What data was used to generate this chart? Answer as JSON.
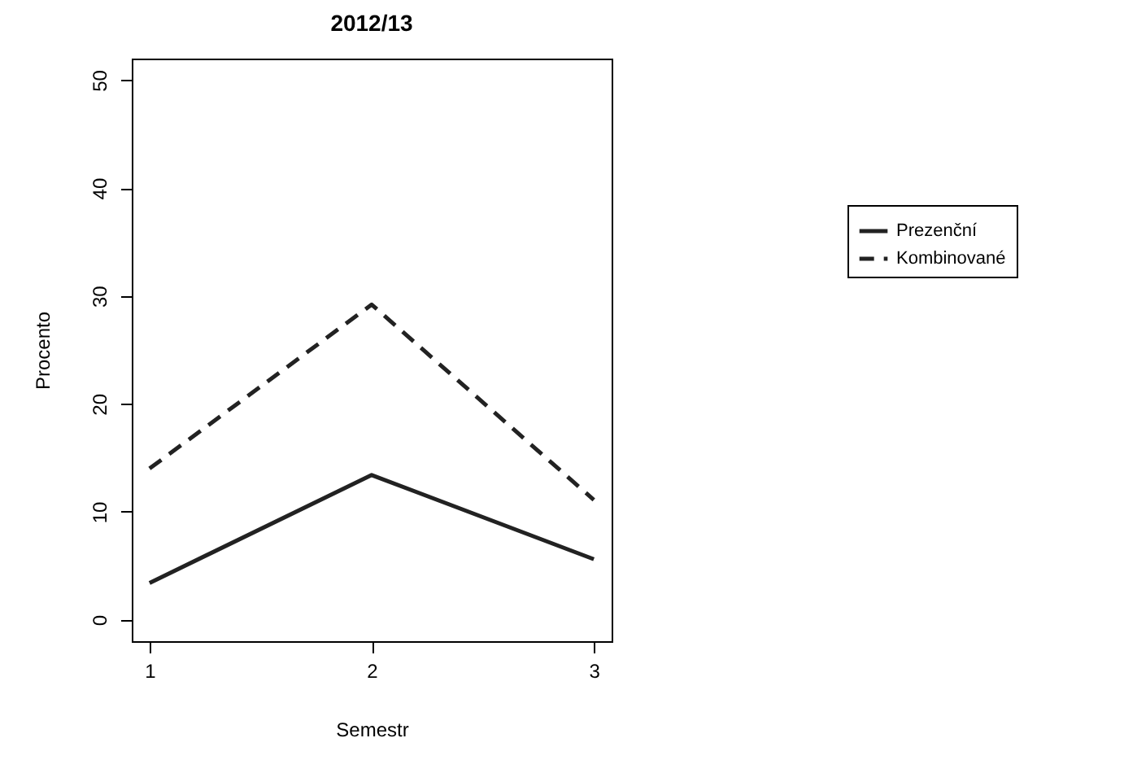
{
  "chart_data": {
    "type": "line",
    "title": "2012/13",
    "xlabel": "Semestr",
    "ylabel": "Procento",
    "x": [
      1,
      2,
      3
    ],
    "xlim": [
      0.92,
      3.08
    ],
    "xticks": [
      1,
      2,
      3
    ],
    "ylim": [
      -2,
      52
    ],
    "yticks": [
      0,
      10,
      20,
      30,
      40,
      50
    ],
    "series": [
      {
        "name": "Prezenční",
        "color": "#222222",
        "line_style": "solid",
        "values": [
          3.4,
          13.4,
          5.6
        ]
      },
      {
        "name": "Kombinované",
        "color": "#222222",
        "line_style": "dashed",
        "values": [
          14,
          29.2,
          11.1
        ]
      }
    ],
    "grid": false,
    "legend": "right",
    "marker": "none"
  }
}
